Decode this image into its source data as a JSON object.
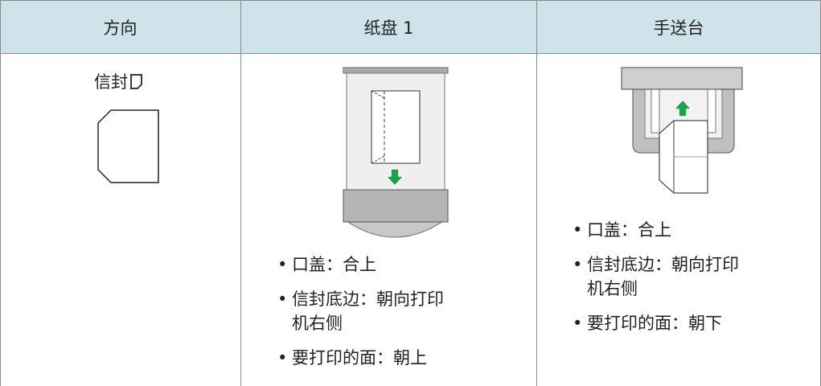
{
  "table": {
    "headers": [
      "方向",
      "纸盘 1",
      "手送台"
    ],
    "rows": [
      {
        "orientation": "信封",
        "tray1": [
          "口盖：合上",
          "信封底边：朝向打印机右侧",
          "要打印的面：朝上"
        ],
        "bypass": [
          "口盖：合上",
          "信封底边：朝向打印机右侧",
          "要打印的面：朝下"
        ]
      }
    ]
  }
}
